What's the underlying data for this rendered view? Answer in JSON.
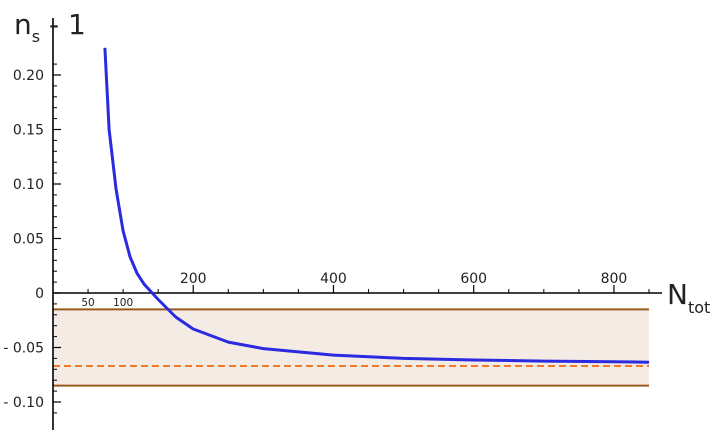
{
  "chart_data": {
    "type": "line",
    "ylabel_main": "n",
    "ylabel_sub": "s",
    "ylabel_rest": " - 1",
    "xlabel_main": "N",
    "xlabel_sub": "tot",
    "xlim": [
      0,
      850
    ],
    "ylim": [
      -0.12,
      0.225
    ],
    "x_ticks_major": [
      200,
      400,
      600,
      800
    ],
    "x_ticks_major_labels": [
      "200",
      "400",
      "600",
      "800"
    ],
    "x_ticks_small_labels": [
      {
        "x": 50,
        "label": "50"
      },
      {
        "x": 100,
        "label": "100"
      }
    ],
    "y_ticks": [
      0.2,
      0.15,
      0.1,
      0.05,
      0,
      -0.05,
      -0.1
    ],
    "y_tick_labels": [
      "0.20",
      "0.15",
      "0.10",
      "0.05",
      "0",
      "- 0.05",
      "- 0.10"
    ],
    "band": {
      "lower": -0.085,
      "upper": -0.015,
      "central": -0.067
    },
    "series": [
      {
        "x": [
          74,
          80,
          90,
          100,
          110,
          120,
          130,
          140,
          150,
          175,
          200,
          250,
          300,
          400,
          500,
          600,
          700,
          800,
          850
        ],
        "y": [
          0.225,
          0.15,
          0.095,
          0.057,
          0.033,
          0.018,
          0.008,
          0.001,
          -0.006,
          -0.022,
          -0.033,
          -0.045,
          -0.051,
          -0.057,
          -0.06,
          -0.0615,
          -0.0625,
          -0.063,
          -0.0635
        ]
      }
    ],
    "colors": {
      "curve": "#2a2ae0",
      "band_fill": "#f5ebe5",
      "band_edges": "#9a5a1e",
      "central_line": "#f07a2a",
      "axes": "#000000"
    }
  }
}
